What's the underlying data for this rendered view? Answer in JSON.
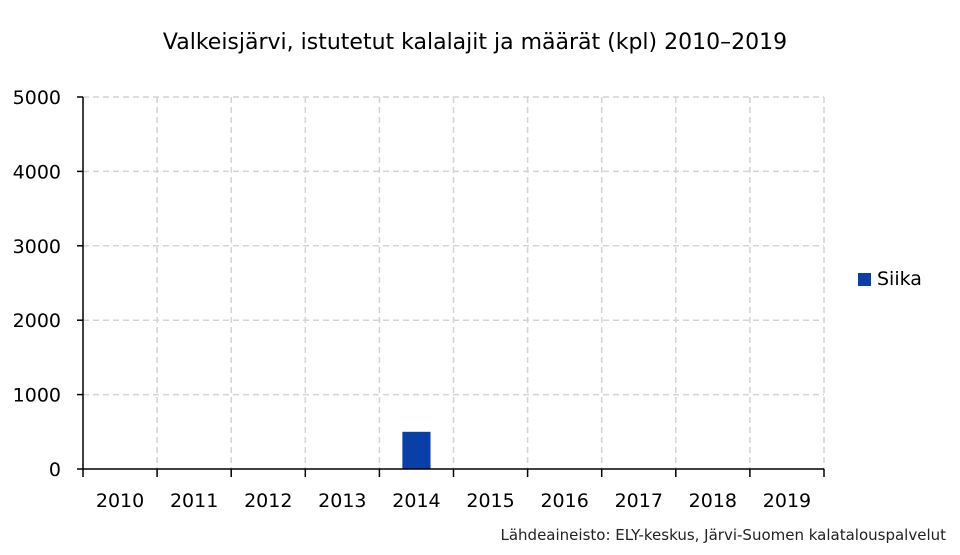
{
  "chart_data": {
    "type": "bar",
    "title": "Valkeisjärvi, istutetut kalalajit ja määrät (kpl) 2010–2019",
    "xlabel": "",
    "ylabel": "",
    "categories": [
      "2010",
      "2011",
      "2012",
      "2013",
      "2014",
      "2015",
      "2016",
      "2017",
      "2018",
      "2019"
    ],
    "series": [
      {
        "name": "Siika",
        "values": [
          0,
          0,
          0,
          0,
          500,
          0,
          0,
          0,
          0,
          0
        ],
        "color": "#0b3fa8"
      }
    ],
    "ylim": [
      0,
      5000
    ],
    "yticks": [
      "0",
      "1000",
      "2000",
      "3000",
      "4000",
      "5000"
    ],
    "grid": true,
    "legend": "right"
  },
  "source_note": "Lähdeaineisto: ELY-keskus, Järvi-Suomen kalatalouspalvelut"
}
